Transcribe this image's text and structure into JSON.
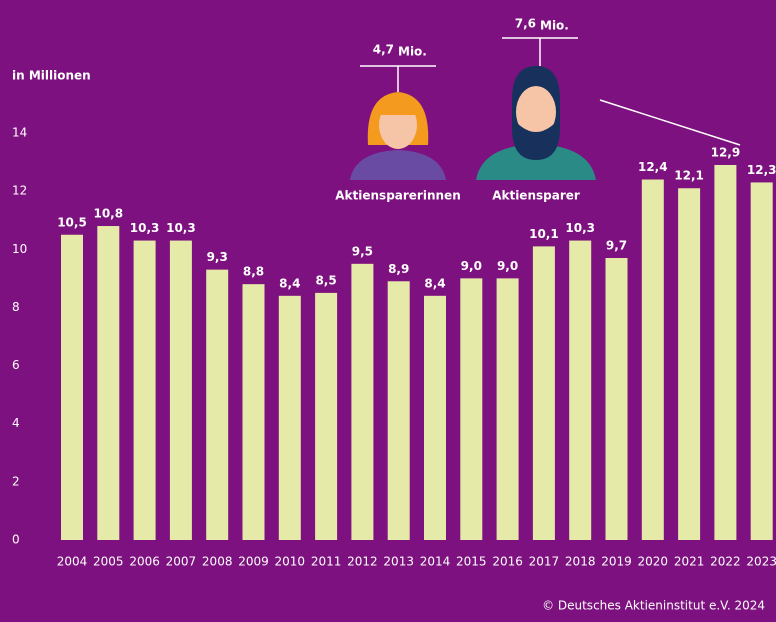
{
  "chart_data": {
    "type": "bar",
    "y_axis_label": "in Millionen",
    "categories": [
      "2004",
      "2005",
      "2006",
      "2007",
      "2008",
      "2009",
      "2010",
      "2011",
      "2012",
      "2013",
      "2014",
      "2015",
      "2016",
      "2017",
      "2018",
      "2019",
      "2020",
      "2021",
      "2022",
      "2023"
    ],
    "values": [
      10.5,
      10.8,
      10.3,
      10.3,
      9.3,
      8.8,
      8.4,
      8.5,
      9.5,
      8.9,
      8.4,
      9.0,
      9.0,
      10.1,
      10.3,
      9.7,
      12.4,
      12.1,
      12.9,
      12.3
    ],
    "value_labels": [
      "10,5",
      "10,8",
      "10,3",
      "10,3",
      "9,3",
      "8,8",
      "8,4",
      "8,5",
      "9,5",
      "8,9",
      "8,4",
      "9,0",
      "9,0",
      "10,1",
      "10,3",
      "9,7",
      "12,4",
      "12,1",
      "12,9",
      "12,3"
    ],
    "color": "#e5eaa8",
    "ylim": [
      0,
      14
    ],
    "yticks": [
      0,
      2,
      4,
      6,
      8,
      10,
      12,
      14
    ],
    "grid": false,
    "annotations": [
      {
        "value": "4,7",
        "unit": "Mio.",
        "label": "Aktiensparerinnen"
      },
      {
        "value": "7,6",
        "unit": "Mio.",
        "label": "Aktiensparer"
      }
    ],
    "source": "© Deutsches Aktieninstitut e.V. 2024"
  }
}
